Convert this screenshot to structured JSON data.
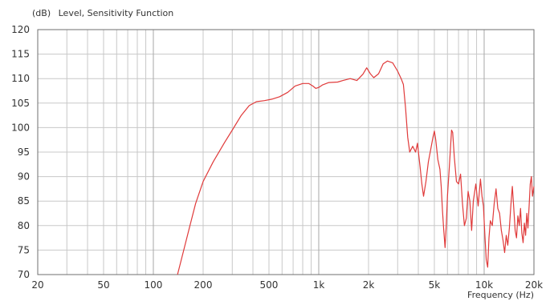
{
  "chart_data": {
    "type": "line",
    "header": {
      "unit": "(dB)",
      "title": "Level,  Sensitivity Function"
    },
    "xlabel": "Frequency  (Hz)",
    "xscale": "log",
    "xlim": [
      20,
      20000
    ],
    "ylim": [
      70,
      120
    ],
    "grid": true,
    "x_ticks": [
      {
        "v": 20,
        "label": "20"
      },
      {
        "v": 50,
        "label": "50"
      },
      {
        "v": 100,
        "label": "100"
      },
      {
        "v": 200,
        "label": "200"
      },
      {
        "v": 500,
        "label": "500"
      },
      {
        "v": 1000,
        "label": "1k"
      },
      {
        "v": 2000,
        "label": "2k"
      },
      {
        "v": 5000,
        "label": "5k"
      },
      {
        "v": 10000,
        "label": "10k"
      },
      {
        "v": 20000,
        "label": "20k"
      }
    ],
    "y_ticks": [
      70,
      75,
      80,
      85,
      90,
      95,
      100,
      105,
      110,
      115,
      120
    ],
    "series": [
      {
        "color": "#e03a3a",
        "points": [
          [
            140,
            70.0
          ],
          [
            150,
            74.0
          ],
          [
            165,
            79.5
          ],
          [
            180,
            84.5
          ],
          [
            200,
            89.0
          ],
          [
            230,
            93.0
          ],
          [
            270,
            97.0
          ],
          [
            300,
            99.5
          ],
          [
            340,
            102.5
          ],
          [
            380,
            104.5
          ],
          [
            420,
            105.3
          ],
          [
            470,
            105.5
          ],
          [
            520,
            105.8
          ],
          [
            580,
            106.3
          ],
          [
            650,
            107.2
          ],
          [
            720,
            108.5
          ],
          [
            800,
            109.0
          ],
          [
            870,
            109.0
          ],
          [
            920,
            108.5
          ],
          [
            960,
            108.0
          ],
          [
            1000,
            108.2
          ],
          [
            1050,
            108.7
          ],
          [
            1150,
            109.2
          ],
          [
            1300,
            109.3
          ],
          [
            1400,
            109.6
          ],
          [
            1550,
            110.0
          ],
          [
            1700,
            109.6
          ],
          [
            1850,
            110.9
          ],
          [
            1950,
            112.2
          ],
          [
            2050,
            111.0
          ],
          [
            2150,
            110.2
          ],
          [
            2300,
            111.0
          ],
          [
            2450,
            113.0
          ],
          [
            2600,
            113.6
          ],
          [
            2800,
            113.2
          ],
          [
            3000,
            111.5
          ],
          [
            3150,
            110.0
          ],
          [
            3250,
            108.8
          ],
          [
            3350,
            104.0
          ],
          [
            3450,
            98.0
          ],
          [
            3550,
            95.0
          ],
          [
            3700,
            96.2
          ],
          [
            3850,
            95.0
          ],
          [
            3950,
            96.8
          ],
          [
            4100,
            92.0
          ],
          [
            4200,
            88.5
          ],
          [
            4300,
            86.0
          ],
          [
            4450,
            89.0
          ],
          [
            4600,
            93.0
          ],
          [
            4750,
            95.5
          ],
          [
            4900,
            98.0
          ],
          [
            5000,
            99.3
          ],
          [
            5100,
            97.5
          ],
          [
            5250,
            93.5
          ],
          [
            5400,
            91.5
          ],
          [
            5500,
            88.0
          ],
          [
            5600,
            83.0
          ],
          [
            5700,
            79.0
          ],
          [
            5800,
            75.5
          ],
          [
            5900,
            80.0
          ],
          [
            6000,
            86.0
          ],
          [
            6200,
            93.5
          ],
          [
            6350,
            99.5
          ],
          [
            6450,
            99.0
          ],
          [
            6600,
            94.0
          ],
          [
            6800,
            89.0
          ],
          [
            7000,
            88.5
          ],
          [
            7200,
            90.5
          ],
          [
            7400,
            84.5
          ],
          [
            7600,
            80.0
          ],
          [
            7800,
            81.5
          ],
          [
            8000,
            87.0
          ],
          [
            8200,
            85.0
          ],
          [
            8400,
            79.0
          ],
          [
            8600,
            85.0
          ],
          [
            8900,
            88.5
          ],
          [
            9200,
            84.0
          ],
          [
            9500,
            89.5
          ],
          [
            9700,
            86.0
          ],
          [
            9900,
            84.0
          ],
          [
            10100,
            78.0
          ],
          [
            10300,
            73.0
          ],
          [
            10500,
            71.5
          ],
          [
            10700,
            77.5
          ],
          [
            10900,
            81.0
          ],
          [
            11200,
            80.0
          ],
          [
            11500,
            84.5
          ],
          [
            11800,
            87.5
          ],
          [
            12100,
            83.5
          ],
          [
            12400,
            82.5
          ],
          [
            12700,
            79.0
          ],
          [
            13000,
            77.0
          ],
          [
            13300,
            74.5
          ],
          [
            13600,
            78.0
          ],
          [
            13900,
            76.0
          ],
          [
            14200,
            79.5
          ],
          [
            14500,
            84.0
          ],
          [
            14800,
            88.0
          ],
          [
            15100,
            83.5
          ],
          [
            15400,
            79.0
          ],
          [
            15700,
            77.5
          ],
          [
            16000,
            82.0
          ],
          [
            16300,
            80.0
          ],
          [
            16600,
            83.5
          ],
          [
            16900,
            78.5
          ],
          [
            17200,
            76.5
          ],
          [
            17500,
            80.5
          ],
          [
            17800,
            78.0
          ],
          [
            18100,
            82.5
          ],
          [
            18400,
            79.5
          ],
          [
            18700,
            84.0
          ],
          [
            19000,
            88.5
          ],
          [
            19300,
            90.0
          ],
          [
            19600,
            86.0
          ],
          [
            20000,
            88.0
          ]
        ]
      }
    ]
  }
}
